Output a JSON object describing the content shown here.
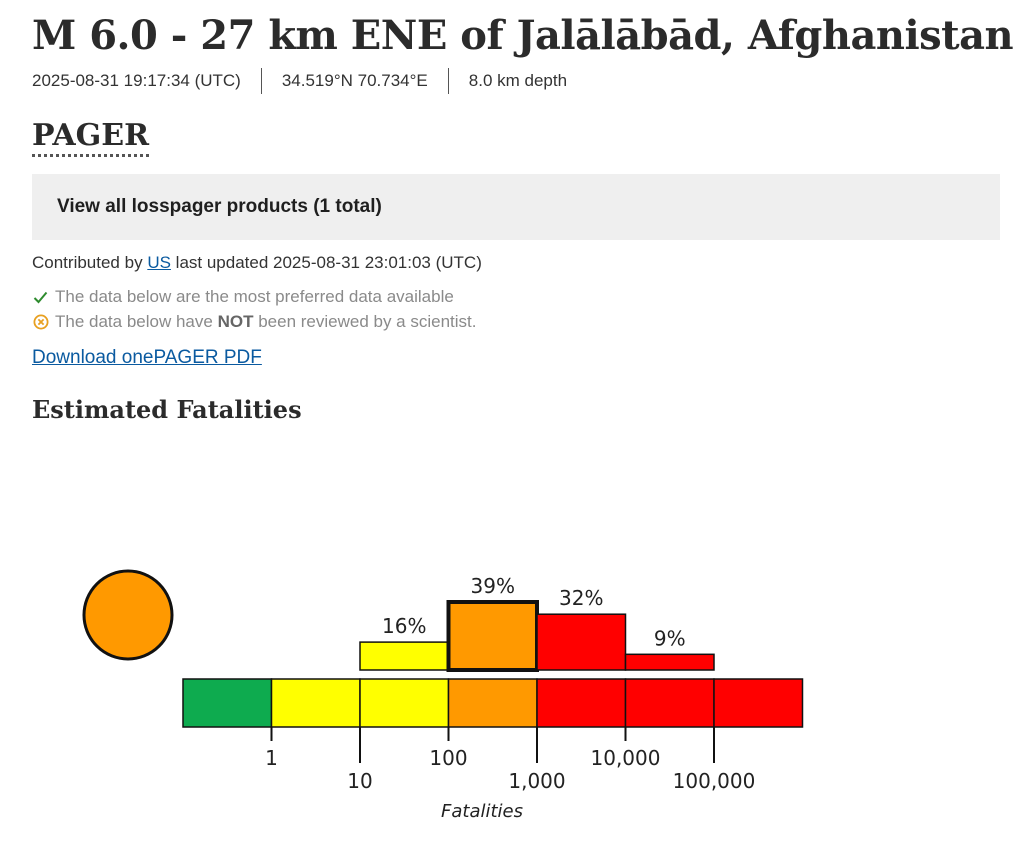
{
  "header": {
    "title": "M 6.0 - 27 km ENE of Jalālābād, Afghanistan",
    "time": "2025-08-31 19:17:34 (UTC)",
    "location": "34.519°N 70.734°E",
    "depth": "8.0 km depth"
  },
  "section": {
    "title": "PAGER",
    "products_link": "View all losspager products (1 total)",
    "contributed_prefix": "Contributed by",
    "contributor": "US",
    "updated": "last updated 2025-08-31 23:01:03 (UTC)",
    "status_preferred": "The data below are the most preferred data available",
    "status_review_prefix": "The data below have",
    "status_review_not": "NOT",
    "status_review_suffix": "been reviewed by a scientist.",
    "download_label": "Download onePAGER PDF",
    "estimated_title": "Estimated Fatalities"
  },
  "colors": {
    "green": "#0eab4f",
    "yellow": "#ffff00",
    "orange": "#ff9900",
    "red": "#ff0000",
    "alert": "#ff9900"
  },
  "chart_data": {
    "type": "bar",
    "xlabel": "Fatalities",
    "alert_level": "orange",
    "scale_colors": [
      "green",
      "yellow",
      "yellow",
      "orange",
      "red",
      "red",
      "red"
    ],
    "tick_labels": [
      "1",
      "10",
      "100",
      "1,000",
      "10,000",
      "100,000"
    ],
    "categories": [
      "1-10",
      "10-100",
      "100-1,000",
      "1,000-10,000",
      "10,000-100,000"
    ],
    "values": [
      0,
      16,
      39,
      32,
      9
    ],
    "value_labels": [
      "",
      "16%",
      "39%",
      "32%",
      "9%"
    ],
    "bar_colors": [
      "yellow",
      "yellow",
      "orange",
      "red",
      "red"
    ],
    "highlight_index": 2
  }
}
